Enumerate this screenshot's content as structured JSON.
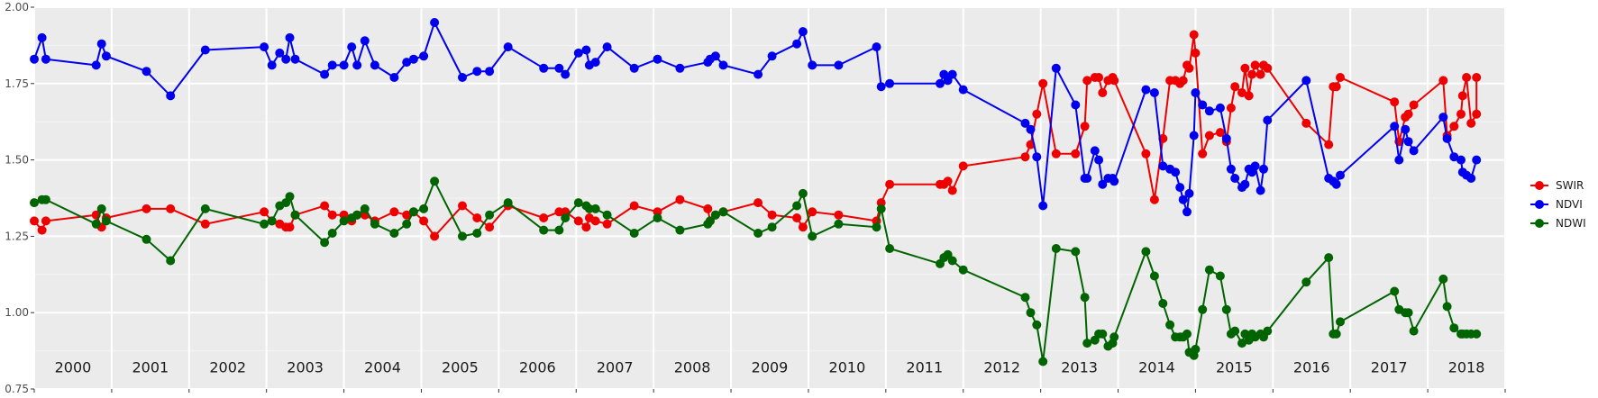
{
  "chart_data": {
    "type": "line",
    "title": "",
    "xlabel": "",
    "ylabel": "",
    "ylim": [
      0.75,
      2.0
    ],
    "xlim": [
      2000.0,
      2019.0
    ],
    "y_ticks": [
      "0.75",
      "1.00",
      "1.25",
      "1.50",
      "1.75",
      "2.00"
    ],
    "year_labels": [
      "2000",
      "2001",
      "2002",
      "2003",
      "2004",
      "2005",
      "2006",
      "2007",
      "2008",
      "2009",
      "2010",
      "2011",
      "2012",
      "2013",
      "2014",
      "2015",
      "2016",
      "2017",
      "2018"
    ],
    "grid": true,
    "background": "#ebebeb",
    "legend_position": "right",
    "series": [
      {
        "name": "SWIR",
        "color": "#ee0000",
        "x": [
          2000.0,
          2000.1,
          2000.15,
          2000.8,
          2000.87,
          2000.93,
          2001.45,
          2001.76,
          2002.21,
          2002.97,
          2003.07,
          2003.17,
          2003.25,
          2003.3,
          2003.37,
          2003.75,
          2003.85,
          2004.0,
          2004.1,
          2004.17,
          2004.27,
          2004.4,
          2004.65,
          2004.81,
          2004.9,
          2005.03,
          2005.17,
          2005.53,
          2005.72,
          2005.88,
          2006.12,
          2006.58,
          2006.78,
          2006.86,
          2007.03,
          2007.13,
          2007.17,
          2007.25,
          2007.4,
          2007.75,
          2008.05,
          2008.34,
          2008.7,
          2008.73,
          2008.8,
          2008.9,
          2009.35,
          2009.53,
          2009.85,
          2009.93,
          2010.05,
          2010.39,
          2010.88,
          2010.94,
          2011.05,
          2011.7,
          2011.75,
          2011.8,
          2011.86,
          2012.0,
          2012.8,
          2012.87,
          2012.95,
          2013.03,
          2013.2,
          2013.45,
          2013.57,
          2013.6,
          2013.7,
          2013.75,
          2013.8,
          2013.87,
          2013.93,
          2013.95,
          2014.36,
          2014.47,
          2014.58,
          2014.67,
          2014.74,
          2014.8,
          2014.84,
          2014.89,
          2014.92,
          2014.98,
          2015.0,
          2015.09,
          2015.18,
          2015.32,
          2015.4,
          2015.46,
          2015.51,
          2015.6,
          2015.64,
          2015.69,
          2015.73,
          2015.77,
          2015.84,
          2015.88,
          2015.93,
          2016.43,
          2016.72,
          2016.78,
          2016.82,
          2016.87,
          2017.57,
          2017.63,
          2017.71,
          2017.75,
          2017.82,
          2018.2,
          2018.25,
          2018.34,
          2018.43,
          2018.45,
          2018.5,
          2018.56,
          2018.63
        ],
        "values": [
          1.3,
          1.27,
          1.3,
          1.32,
          1.28,
          1.31,
          1.34,
          1.34,
          1.29,
          1.33,
          1.3,
          1.29,
          1.28,
          1.28,
          1.32,
          1.35,
          1.32,
          1.32,
          1.3,
          1.32,
          1.32,
          1.3,
          1.33,
          1.32,
          1.33,
          1.3,
          1.25,
          1.35,
          1.31,
          1.28,
          1.35,
          1.31,
          1.33,
          1.33,
          1.3,
          1.28,
          1.31,
          1.3,
          1.29,
          1.35,
          1.33,
          1.37,
          1.34,
          1.3,
          1.32,
          1.33,
          1.36,
          1.32,
          1.31,
          1.28,
          1.33,
          1.32,
          1.3,
          1.36,
          1.42,
          1.42,
          1.42,
          1.43,
          1.4,
          1.48,
          1.51,
          1.55,
          1.65,
          1.75,
          1.52,
          1.52,
          1.61,
          1.76,
          1.77,
          1.77,
          1.72,
          1.76,
          1.77,
          1.76,
          1.52,
          1.37,
          1.57,
          1.76,
          1.76,
          1.75,
          1.76,
          1.81,
          1.8,
          1.91,
          1.85,
          1.52,
          1.58,
          1.59,
          1.56,
          1.67,
          1.74,
          1.72,
          1.8,
          1.71,
          1.78,
          1.81,
          1.78,
          1.81,
          1.8,
          1.62,
          1.55,
          1.74,
          1.74,
          1.77,
          1.69,
          1.56,
          1.64,
          1.65,
          1.68,
          1.76,
          1.58,
          1.61,
          1.65,
          1.71,
          1.77,
          1.62,
          1.65
        ],
        "x_ext": [
          2018.63
        ],
        "values_ext": [
          1.77
        ]
      },
      {
        "name": "NDVI",
        "color": "#0000ee",
        "x": [
          2000.0,
          2000.1,
          2000.15,
          2000.8,
          2000.87,
          2000.93,
          2001.45,
          2001.76,
          2002.21,
          2002.97,
          2003.07,
          2003.17,
          2003.25,
          2003.3,
          2003.37,
          2003.75,
          2003.85,
          2004.0,
          2004.1,
          2004.17,
          2004.27,
          2004.4,
          2004.65,
          2004.81,
          2004.9,
          2005.03,
          2005.17,
          2005.53,
          2005.72,
          2005.88,
          2006.12,
          2006.58,
          2006.78,
          2006.86,
          2007.03,
          2007.13,
          2007.17,
          2007.25,
          2007.4,
          2007.75,
          2008.05,
          2008.34,
          2008.7,
          2008.73,
          2008.8,
          2008.9,
          2009.35,
          2009.53,
          2009.85,
          2009.93,
          2010.05,
          2010.39,
          2010.88,
          2010.94,
          2011.05,
          2011.7,
          2011.75,
          2011.8,
          2011.86,
          2012.0,
          2012.8,
          2012.87,
          2012.95,
          2013.03,
          2013.2,
          2013.45,
          2013.57,
          2013.6,
          2013.7,
          2013.75,
          2013.8,
          2013.87,
          2013.93,
          2013.95,
          2014.36,
          2014.47,
          2014.58,
          2014.67,
          2014.74,
          2014.8,
          2014.84,
          2014.89,
          2014.92,
          2014.98,
          2015.0,
          2015.09,
          2015.18,
          2015.32,
          2015.4,
          2015.46,
          2015.51,
          2015.6,
          2015.64,
          2015.69,
          2015.73,
          2015.77,
          2015.84,
          2015.88,
          2015.93,
          2016.43,
          2016.72,
          2016.78,
          2016.82,
          2016.87,
          2017.57,
          2017.63,
          2017.71,
          2017.75,
          2017.82,
          2018.2,
          2018.25,
          2018.34,
          2018.43,
          2018.45,
          2018.5,
          2018.56,
          2018.63
        ],
        "values": [
          1.83,
          1.9,
          1.83,
          1.81,
          1.88,
          1.84,
          1.79,
          1.71,
          1.86,
          1.87,
          1.81,
          1.85,
          1.83,
          1.9,
          1.83,
          1.78,
          1.81,
          1.81,
          1.87,
          1.81,
          1.89,
          1.81,
          1.77,
          1.82,
          1.83,
          1.84,
          1.95,
          1.77,
          1.79,
          1.79,
          1.87,
          1.8,
          1.8,
          1.78,
          1.85,
          1.86,
          1.81,
          1.82,
          1.87,
          1.8,
          1.83,
          1.8,
          1.82,
          1.83,
          1.84,
          1.81,
          1.78,
          1.84,
          1.88,
          1.92,
          1.81,
          1.81,
          1.87,
          1.74,
          1.75,
          1.75,
          1.78,
          1.76,
          1.78,
          1.73,
          1.62,
          1.6,
          1.51,
          1.35,
          1.8,
          1.68,
          1.44,
          1.44,
          1.53,
          1.5,
          1.42,
          1.44,
          1.44,
          1.43,
          1.73,
          1.72,
          1.48,
          1.47,
          1.46,
          1.41,
          1.37,
          1.33,
          1.39,
          1.58,
          1.72,
          1.68,
          1.66,
          1.67,
          1.57,
          1.47,
          1.44,
          1.41,
          1.42,
          1.47,
          1.46,
          1.48,
          1.4,
          1.47,
          1.63,
          1.76,
          1.44,
          1.43,
          1.42,
          1.45,
          1.61,
          1.5,
          1.6,
          1.56,
          1.53,
          1.64,
          1.57,
          1.51,
          1.5,
          1.46,
          1.45,
          1.44,
          1.5
        ],
        "x_ext": [],
        "values_ext": []
      },
      {
        "name": "NDWI",
        "color": "#006400",
        "x": [
          2000.0,
          2000.1,
          2000.15,
          2000.8,
          2000.87,
          2000.93,
          2001.45,
          2001.76,
          2002.21,
          2002.97,
          2003.07,
          2003.17,
          2003.25,
          2003.3,
          2003.37,
          2003.75,
          2003.85,
          2004.0,
          2004.1,
          2004.17,
          2004.27,
          2004.4,
          2004.65,
          2004.81,
          2004.9,
          2005.03,
          2005.17,
          2005.53,
          2005.72,
          2005.88,
          2006.12,
          2006.58,
          2006.78,
          2006.86,
          2007.03,
          2007.13,
          2007.17,
          2007.25,
          2007.4,
          2007.75,
          2008.05,
          2008.34,
          2008.7,
          2008.73,
          2008.8,
          2008.9,
          2009.35,
          2009.53,
          2009.85,
          2009.93,
          2010.05,
          2010.39,
          2010.88,
          2010.94,
          2011.05,
          2011.7,
          2011.75,
          2011.8,
          2011.86,
          2012.0,
          2012.8,
          2012.87,
          2012.95,
          2013.03,
          2013.2,
          2013.45,
          2013.57,
          2013.6,
          2013.7,
          2013.75,
          2013.8,
          2013.87,
          2013.93,
          2013.95,
          2014.36,
          2014.47,
          2014.58,
          2014.67,
          2014.74,
          2014.8,
          2014.84,
          2014.89,
          2014.92,
          2014.98,
          2015.0,
          2015.09,
          2015.18,
          2015.32,
          2015.4,
          2015.46,
          2015.51,
          2015.6,
          2015.64,
          2015.69,
          2015.73,
          2015.77,
          2015.84,
          2015.88,
          2015.93,
          2016.43,
          2016.72,
          2016.78,
          2016.82,
          2016.87,
          2017.57,
          2017.63,
          2017.71,
          2017.75,
          2017.82,
          2018.2,
          2018.25,
          2018.34,
          2018.43,
          2018.45,
          2018.5,
          2018.56,
          2018.63
        ],
        "values": [
          1.36,
          1.37,
          1.37,
          1.29,
          1.34,
          1.3,
          1.24,
          1.17,
          1.34,
          1.29,
          1.3,
          1.35,
          1.36,
          1.38,
          1.32,
          1.23,
          1.26,
          1.3,
          1.31,
          1.32,
          1.34,
          1.29,
          1.26,
          1.29,
          1.33,
          1.34,
          1.43,
          1.25,
          1.26,
          1.32,
          1.36,
          1.27,
          1.27,
          1.31,
          1.36,
          1.35,
          1.34,
          1.34,
          1.32,
          1.26,
          1.31,
          1.27,
          1.29,
          1.3,
          1.32,
          1.33,
          1.26,
          1.28,
          1.35,
          1.39,
          1.25,
          1.29,
          1.28,
          1.34,
          1.21,
          1.16,
          1.18,
          1.19,
          1.17,
          1.14,
          1.05,
          1.0,
          0.96,
          0.84,
          1.21,
          1.2,
          1.05,
          0.9,
          0.91,
          0.93,
          0.93,
          0.89,
          0.9,
          0.92,
          1.2,
          1.12,
          1.03,
          0.96,
          0.92,
          0.92,
          0.92,
          0.93,
          0.87,
          0.86,
          0.88,
          1.01,
          1.14,
          1.12,
          1.01,
          0.93,
          0.94,
          0.9,
          0.93,
          0.91,
          0.93,
          0.92,
          0.93,
          0.92,
          0.94,
          1.1,
          1.18,
          0.93,
          0.93,
          0.97,
          1.07,
          1.01,
          1.0,
          1.0,
          0.94,
          1.11,
          1.02,
          0.95,
          0.93,
          0.93,
          0.93,
          0.93,
          0.93
        ],
        "x_ext": [],
        "values_ext": []
      }
    ]
  }
}
